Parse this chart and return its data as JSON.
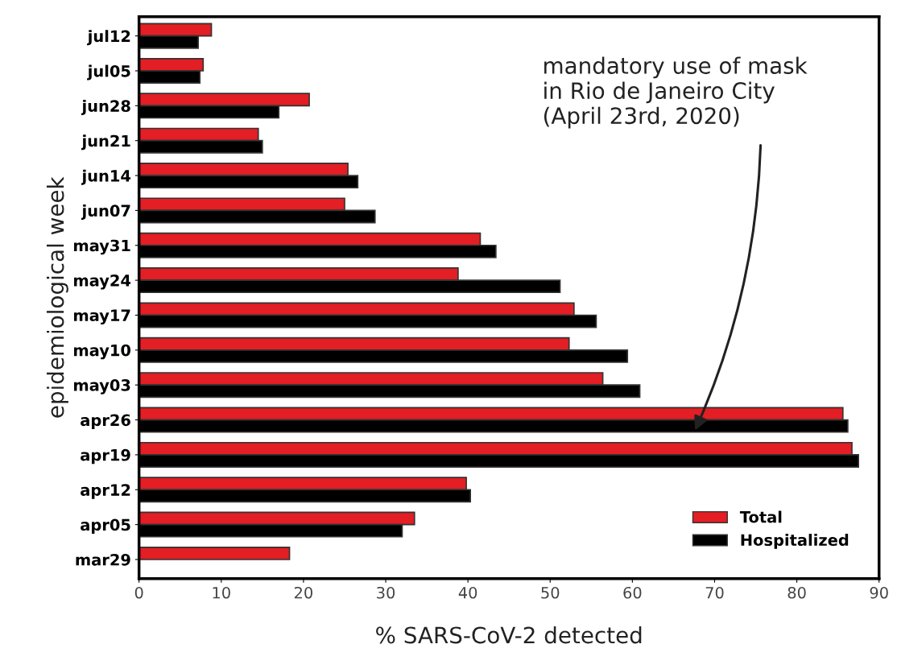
{
  "chart_data": {
    "type": "bar",
    "orientation": "horizontal",
    "xlabel": "% SARS-CoV-2 detected",
    "ylabel": "epidemiological week",
    "categories": [
      "jul12",
      "jul05",
      "jun28",
      "jun21",
      "jun14",
      "jun07",
      "may31",
      "may24",
      "may17",
      "may10",
      "may03",
      "apr26",
      "apr19",
      "apr12",
      "apr05",
      "mar29"
    ],
    "series": [
      {
        "name": "Total",
        "color": "#e31e24",
        "values": [
          8.8,
          7.8,
          20.7,
          14.5,
          25.4,
          25.0,
          41.5,
          38.8,
          52.9,
          52.3,
          56.4,
          85.6,
          86.7,
          39.8,
          33.5,
          18.3
        ]
      },
      {
        "name": "Hospitalized",
        "color": "#000000",
        "values": [
          7.2,
          7.4,
          17.0,
          15.0,
          26.6,
          28.7,
          43.4,
          51.2,
          55.6,
          59.4,
          60.9,
          86.2,
          87.5,
          40.3,
          32.0,
          null
        ]
      }
    ],
    "xlim": [
      0,
      90
    ],
    "xticks": [
      0,
      10,
      20,
      30,
      40,
      50,
      60,
      70,
      80,
      90
    ],
    "grid": false,
    "legend": "bottom right",
    "annotations": [
      "mandatory use of mask\nin Rio de Janeiro City\n(April 23rd, 2020)"
    ]
  }
}
